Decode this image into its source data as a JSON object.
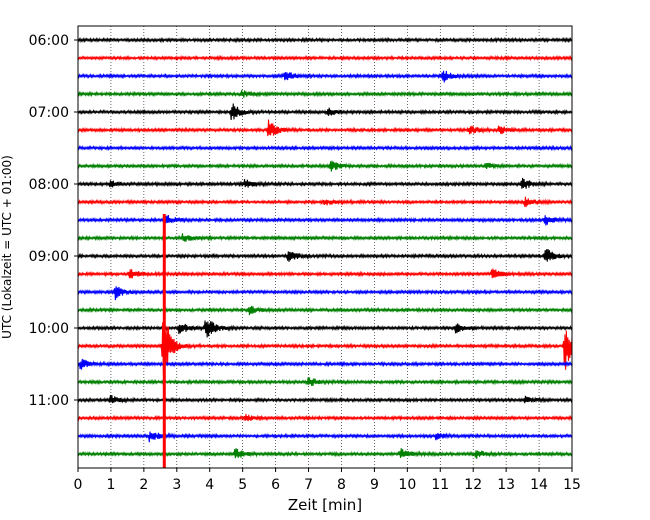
{
  "chart_data": {
    "type": "line",
    "title": "",
    "xlabel": "Zeit  [min]",
    "ylabel": "UTC (Lokalzeit = UTC + 01:00)",
    "xlim": [
      0,
      15
    ],
    "x_ticks": [
      "0",
      "1",
      "2",
      "3",
      "4",
      "5",
      "6",
      "7",
      "8",
      "9",
      "10",
      "11",
      "12",
      "13",
      "14",
      "15"
    ],
    "y_ticks": [
      {
        "label": "06:00",
        "trace": 0
      },
      {
        "label": "07:00",
        "trace": 4
      },
      {
        "label": "08:00",
        "trace": 8
      },
      {
        "label": "09:00",
        "trace": 12
      },
      {
        "label": "10:00",
        "trace": 16
      },
      {
        "label": "11:00",
        "trace": 20
      }
    ],
    "grid": "vertical dotted",
    "trace_interval_min": 15,
    "colors": [
      "#000000",
      "#ff0000",
      "#0000ff",
      "#008000"
    ],
    "series": [
      {
        "start": "06:00",
        "color": "#000000",
        "events": []
      },
      {
        "start": "06:15",
        "color": "#ff0000",
        "events": []
      },
      {
        "start": "06:30",
        "color": "#0000ff",
        "events": [
          {
            "t": 6.3,
            "amp": 5
          },
          {
            "t": 11.1,
            "amp": 6
          }
        ]
      },
      {
        "start": "06:45",
        "color": "#008000",
        "events": [
          {
            "t": 5.0,
            "amp": 3
          }
        ]
      },
      {
        "start": "07:00",
        "color": "#000000",
        "events": [
          {
            "t": 4.7,
            "amp": 8
          },
          {
            "t": 7.6,
            "amp": 4
          }
        ]
      },
      {
        "start": "07:15",
        "color": "#ff0000",
        "events": [
          {
            "t": 5.8,
            "amp": 10
          },
          {
            "t": 11.9,
            "amp": 4
          },
          {
            "t": 12.8,
            "amp": 4
          }
        ]
      },
      {
        "start": "07:30",
        "color": "#0000ff",
        "events": []
      },
      {
        "start": "07:45",
        "color": "#008000",
        "events": [
          {
            "t": 7.7,
            "amp": 5
          },
          {
            "t": 12.4,
            "amp": 3
          }
        ]
      },
      {
        "start": "08:00",
        "color": "#000000",
        "events": [
          {
            "t": 1.0,
            "amp": 3
          },
          {
            "t": 5.1,
            "amp": 4
          },
          {
            "t": 13.5,
            "amp": 6
          }
        ]
      },
      {
        "start": "08:15",
        "color": "#ff0000",
        "events": [
          {
            "t": 7.5,
            "amp": 3
          },
          {
            "t": 13.6,
            "amp": 4
          }
        ]
      },
      {
        "start": "08:30",
        "color": "#0000ff",
        "events": [
          {
            "t": 2.65,
            "amp": 6
          },
          {
            "t": 14.2,
            "amp": 5
          }
        ]
      },
      {
        "start": "08:45",
        "color": "#008000",
        "events": [
          {
            "t": 3.2,
            "amp": 4
          }
        ]
      },
      {
        "start": "09:00",
        "color": "#000000",
        "events": [
          {
            "t": 6.4,
            "amp": 6
          },
          {
            "t": 14.2,
            "amp": 8
          }
        ]
      },
      {
        "start": "09:15",
        "color": "#ff0000",
        "events": [
          {
            "t": 1.6,
            "amp": 5
          },
          {
            "t": 12.6,
            "amp": 5
          }
        ]
      },
      {
        "start": "09:30",
        "color": "#0000ff",
        "events": [
          {
            "t": 1.15,
            "amp": 7
          }
        ]
      },
      {
        "start": "09:45",
        "color": "#008000",
        "events": [
          {
            "t": 5.2,
            "amp": 4
          }
        ]
      },
      {
        "start": "10:00",
        "color": "#000000",
        "events": [
          {
            "t": 3.1,
            "amp": 6
          },
          {
            "t": 3.9,
            "amp": 12
          },
          {
            "t": 11.5,
            "amp": 4
          }
        ]
      },
      {
        "start": "10:15",
        "color": "#ff0000",
        "events": [
          {
            "t": 2.6,
            "amp": 40
          },
          {
            "t": 14.8,
            "amp": 24
          }
        ]
      },
      {
        "start": "10:30",
        "color": "#0000ff",
        "events": [
          {
            "t": 0.1,
            "amp": 5
          }
        ]
      },
      {
        "start": "10:45",
        "color": "#008000",
        "events": [
          {
            "t": 7.0,
            "amp": 5
          }
        ]
      },
      {
        "start": "11:00",
        "color": "#000000",
        "events": [
          {
            "t": 1.0,
            "amp": 4
          },
          {
            "t": 13.6,
            "amp": 4
          }
        ]
      },
      {
        "start": "11:15",
        "color": "#ff0000",
        "events": [
          {
            "t": 5.1,
            "amp": 3
          }
        ]
      },
      {
        "start": "11:30",
        "color": "#0000ff",
        "events": [
          {
            "t": 2.2,
            "amp": 6
          },
          {
            "t": 10.9,
            "amp": 3
          }
        ]
      },
      {
        "start": "11:45",
        "color": "#008000",
        "events": [
          {
            "t": 4.8,
            "amp": 5
          },
          {
            "t": 9.8,
            "amp": 5
          },
          {
            "t": 12.1,
            "amp": 4
          }
        ]
      }
    ],
    "big_event": {
      "t": 2.62,
      "color": "#ff0000",
      "from_trace": 10,
      "to_trace": 23
    }
  }
}
